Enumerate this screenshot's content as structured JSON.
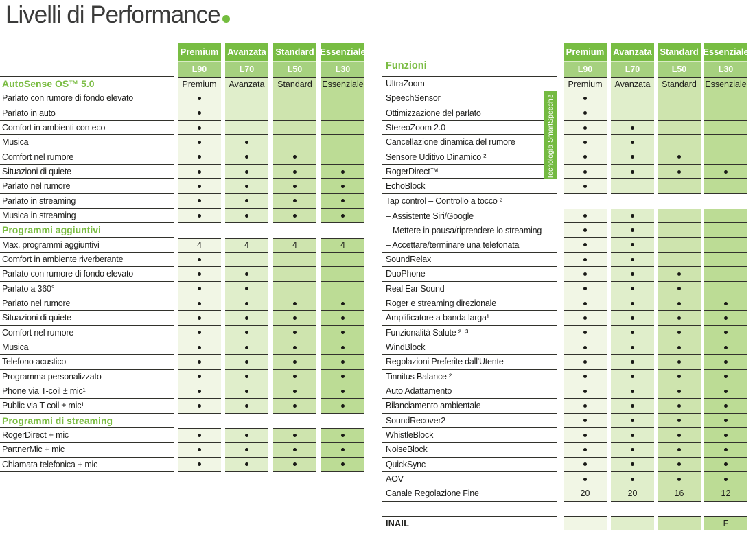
{
  "title": {
    "text": "Livelli di Performance"
  },
  "tiers": [
    {
      "tier": "Premium",
      "model": "L90"
    },
    {
      "tier": "Avanzata",
      "model": "L70"
    },
    {
      "tier": "Standard",
      "model": "L50"
    },
    {
      "tier": "Essenziale",
      "model": "L30"
    }
  ],
  "colors": {
    "accent_green": "#74bd3f",
    "header_top": "#78bd43",
    "header_sub": "#a6d17f",
    "column_shades": [
      "#f1f6e5",
      "#e0eecb",
      "#cee4ae",
      "#bcdc95"
    ],
    "rule_line": "#32322c",
    "section_text": "#7abc42",
    "smartspeech_bg": "#74ba41"
  },
  "left_table": {
    "rows": [
      {
        "style": "section",
        "label": "AutoSense OS™ 5.0",
        "cells": true,
        "cell_top": true,
        "underline": true,
        "values": [
          "Premium",
          "Avanzata",
          "Standard",
          "Essenziale"
        ]
      },
      {
        "style": "normal",
        "label": "Parlato con rumore di fondo elevato",
        "cells": true,
        "underline": true,
        "values": [
          "•",
          "",
          "",
          ""
        ]
      },
      {
        "style": "normal",
        "label": "Parlato in auto",
        "cells": true,
        "underline": true,
        "values": [
          "•",
          "",
          "",
          ""
        ]
      },
      {
        "style": "normal",
        "label": "Comfort in ambienti con eco",
        "cells": true,
        "underline": true,
        "values": [
          "•",
          "",
          "",
          ""
        ]
      },
      {
        "style": "normal",
        "label": "Musica",
        "cells": true,
        "underline": true,
        "values": [
          "•",
          "•",
          "",
          ""
        ]
      },
      {
        "style": "normal",
        "label": "Comfort nel rumore",
        "cells": true,
        "underline": true,
        "values": [
          "•",
          "•",
          "•",
          ""
        ]
      },
      {
        "style": "normal",
        "label": "Situazioni di quiete",
        "cells": true,
        "underline": true,
        "values": [
          "•",
          "•",
          "•",
          "•"
        ]
      },
      {
        "style": "normal",
        "label": "Parlato nel rumore",
        "cells": true,
        "underline": true,
        "values": [
          "•",
          "•",
          "•",
          "•"
        ]
      },
      {
        "style": "normal",
        "label": "Parlato in streaming",
        "cells": true,
        "underline": true,
        "values": [
          "•",
          "•",
          "•",
          "•"
        ]
      },
      {
        "style": "normal",
        "label": "Musica in streaming",
        "cells": true,
        "underline": true,
        "values": [
          "•",
          "•",
          "•",
          "•"
        ]
      },
      {
        "style": "section",
        "label": "Programmi aggiuntivi",
        "cells": false,
        "underline": true,
        "values": [
          "",
          "",
          "",
          ""
        ]
      },
      {
        "style": "normal",
        "label": "Max. programmi aggiuntivi",
        "cells": true,
        "cell_top": true,
        "underline": true,
        "values": [
          "4",
          "4",
          "4",
          "4"
        ]
      },
      {
        "style": "normal",
        "label": "Comfort in ambiente riverberante",
        "cells": true,
        "underline": true,
        "values": [
          "•",
          "",
          "",
          ""
        ]
      },
      {
        "style": "normal",
        "label": "Parlato con rumore di fondo elevato",
        "cells": true,
        "underline": true,
        "values": [
          "•",
          "•",
          "",
          ""
        ]
      },
      {
        "style": "normal",
        "label": "Parlato a 360°",
        "cells": true,
        "underline": true,
        "values": [
          "•",
          "•",
          "",
          ""
        ]
      },
      {
        "style": "normal",
        "label": "Parlato nel rumore",
        "cells": true,
        "underline": true,
        "values": [
          "•",
          "•",
          "•",
          "•"
        ]
      },
      {
        "style": "normal",
        "label": "Situazioni di quiete",
        "cells": true,
        "underline": true,
        "values": [
          "•",
          "•",
          "•",
          "•"
        ]
      },
      {
        "style": "normal",
        "label": "Comfort nel rumore",
        "cells": true,
        "underline": true,
        "values": [
          "•",
          "•",
          "•",
          "•"
        ]
      },
      {
        "style": "normal",
        "label": "Musica",
        "cells": true,
        "underline": true,
        "values": [
          "•",
          "•",
          "•",
          "•"
        ]
      },
      {
        "style": "normal",
        "label": "Telefono acustico",
        "cells": true,
        "underline": true,
        "values": [
          "•",
          "•",
          "•",
          "•"
        ]
      },
      {
        "style": "normal",
        "label": "Programma personalizzato",
        "cells": true,
        "underline": true,
        "values": [
          "•",
          "•",
          "•",
          "•"
        ]
      },
      {
        "style": "normal",
        "label": "Phone via T-coil ± mic¹",
        "cells": true,
        "underline": true,
        "values": [
          "•",
          "•",
          "•",
          "•"
        ]
      },
      {
        "style": "normal",
        "label": "Public via T-coil ± mic¹",
        "cells": true,
        "underline": true,
        "values": [
          "•",
          "•",
          "•",
          "•"
        ]
      },
      {
        "style": "section",
        "label": "Programmi di streaming",
        "cells": false,
        "underline": true,
        "values": [
          "",
          "",
          "",
          ""
        ]
      },
      {
        "style": "normal",
        "label": "RogerDirect + mic",
        "cells": true,
        "cell_top": true,
        "underline": true,
        "values": [
          "•",
          "•",
          "•",
          "•"
        ]
      },
      {
        "style": "normal",
        "label": "PartnerMic + mic",
        "cells": true,
        "underline": true,
        "values": [
          "•",
          "•",
          "•",
          "•"
        ]
      },
      {
        "style": "normal",
        "label": "Chiamata telefonica + mic",
        "cells": true,
        "underline": true,
        "values": [
          "•",
          "•",
          "•",
          "•"
        ]
      }
    ]
  },
  "right_table": {
    "header_label": "Funzioni",
    "smartspeech": {
      "label": "Tecnologia SmartSpeech™",
      "start_row": 1,
      "row_span": 6
    },
    "rows": [
      {
        "style": "normal",
        "label": "UltraZoom",
        "cells": true,
        "cell_top": true,
        "underline": true,
        "values": [
          "Premium",
          "Avanzata",
          "Standard",
          "Essenziale"
        ]
      },
      {
        "style": "normal",
        "label": "SpeechSensor",
        "cells": true,
        "underline": true,
        "values": [
          "•",
          "",
          "",
          ""
        ]
      },
      {
        "style": "normal",
        "label": "Ottimizzazione del parlato",
        "cells": true,
        "underline": true,
        "values": [
          "•",
          "",
          "",
          ""
        ]
      },
      {
        "style": "normal",
        "label": "StereoZoom 2.0",
        "cells": true,
        "underline": true,
        "values": [
          "•",
          "•",
          "",
          ""
        ]
      },
      {
        "style": "normal",
        "label": "Cancellazione dinamica del rumore",
        "cells": true,
        "underline": true,
        "values": [
          "•",
          "•",
          "",
          ""
        ]
      },
      {
        "style": "normal",
        "label": "Sensore Uditivo Dinamico ²",
        "cells": true,
        "underline": true,
        "values": [
          "•",
          "•",
          "•",
          ""
        ]
      },
      {
        "style": "normal",
        "label": "RogerDirect™",
        "cells": true,
        "underline": true,
        "values": [
          "•",
          "•",
          "•",
          "•"
        ]
      },
      {
        "style": "normal",
        "label": "EchoBlock",
        "cells": true,
        "underline": true,
        "values": [
          "•",
          "",
          "",
          ""
        ]
      },
      {
        "style": "normal",
        "label": "Tap control – Controllo a tocco ²",
        "cells": false,
        "underline": false,
        "values": [
          "",
          "",
          "",
          ""
        ]
      },
      {
        "style": "sub",
        "label": "– Assistente Siri/Google",
        "cells": true,
        "cell_top": true,
        "underline": false,
        "values": [
          "•",
          "•",
          "",
          ""
        ]
      },
      {
        "style": "sub",
        "label": "– Mettere in pausa/riprendere lo streaming",
        "cells": true,
        "underline": false,
        "values": [
          "•",
          "•",
          "",
          ""
        ]
      },
      {
        "style": "sub",
        "label": "– Accettare/terminare una telefonata",
        "cells": true,
        "underline": true,
        "values": [
          "•",
          "•",
          "",
          ""
        ]
      },
      {
        "style": "normal",
        "label": "SoundRelax",
        "cells": true,
        "underline": true,
        "values": [
          "•",
          "•",
          "",
          ""
        ]
      },
      {
        "style": "normal",
        "label": "DuoPhone",
        "cells": true,
        "underline": true,
        "values": [
          "•",
          "•",
          "•",
          ""
        ]
      },
      {
        "style": "normal",
        "label": "Real Ear Sound",
        "cells": true,
        "underline": true,
        "values": [
          "•",
          "•",
          "•",
          ""
        ]
      },
      {
        "style": "normal",
        "label": "Roger e streaming direzionale",
        "cells": true,
        "underline": true,
        "values": [
          "•",
          "•",
          "•",
          "•"
        ]
      },
      {
        "style": "normal",
        "label": "Amplificatore a banda larga¹",
        "cells": true,
        "underline": true,
        "values": [
          "•",
          "•",
          "•",
          "•"
        ]
      },
      {
        "style": "normal",
        "label": "Funzionalità Salute ²⁻³",
        "cells": true,
        "underline": true,
        "values": [
          "•",
          "•",
          "•",
          "•"
        ]
      },
      {
        "style": "normal",
        "label": "WindBlock",
        "cells": true,
        "underline": true,
        "values": [
          "•",
          "•",
          "•",
          "•"
        ]
      },
      {
        "style": "normal",
        "label": "Regolazioni Preferite dall'Utente",
        "cells": true,
        "underline": true,
        "values": [
          "•",
          "•",
          "•",
          "•"
        ]
      },
      {
        "style": "normal",
        "label": "Tinnitus Balance ²",
        "cells": true,
        "underline": true,
        "values": [
          "•",
          "•",
          "•",
          "•"
        ]
      },
      {
        "style": "normal",
        "label": "Auto Adattamento",
        "cells": true,
        "underline": true,
        "values": [
          "•",
          "•",
          "•",
          "•"
        ]
      },
      {
        "style": "normal",
        "label": "Bilanciamento ambientale",
        "cells": true,
        "underline": true,
        "values": [
          "•",
          "•",
          "•",
          "•"
        ]
      },
      {
        "style": "normal",
        "label": "SoundRecover2",
        "cells": true,
        "underline": true,
        "values": [
          "•",
          "•",
          "•",
          "•"
        ]
      },
      {
        "style": "normal",
        "label": "WhistleBlock",
        "cells": true,
        "underline": true,
        "values": [
          "•",
          "•",
          "•",
          "•"
        ]
      },
      {
        "style": "normal",
        "label": "NoiseBlock",
        "cells": true,
        "underline": true,
        "values": [
          "•",
          "•",
          "•",
          "•"
        ]
      },
      {
        "style": "normal",
        "label": "QuickSync",
        "cells": true,
        "underline": true,
        "values": [
          "•",
          "•",
          "•",
          "•"
        ]
      },
      {
        "style": "normal",
        "label": "AOV",
        "cells": true,
        "underline": true,
        "values": [
          "•",
          "•",
          "•",
          "•"
        ]
      },
      {
        "style": "normal",
        "label": "Canale Regolazione Fine",
        "cells": true,
        "underline": true,
        "values": [
          "20",
          "20",
          "16",
          "12"
        ]
      },
      {
        "style": "gap",
        "label": "",
        "cells": false,
        "underline": false,
        "values": [
          "",
          "",
          "",
          ""
        ]
      },
      {
        "style": "bold",
        "label": "INAIL",
        "cells": true,
        "cell_top": true,
        "label_top": true,
        "underline": true,
        "values": [
          "",
          "",
          "",
          "F"
        ]
      }
    ]
  }
}
